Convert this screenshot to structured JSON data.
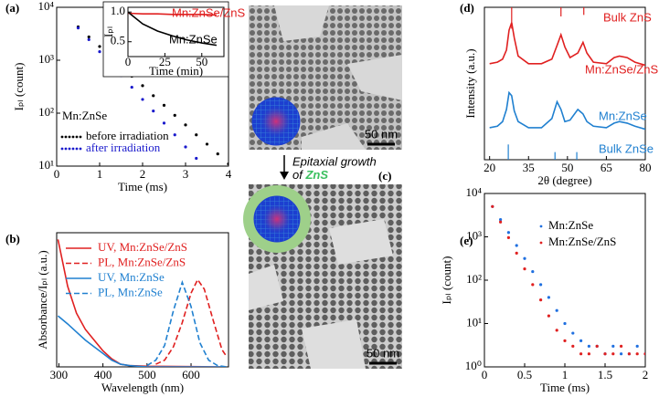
{
  "chart_data": [
    {
      "panel": "(a)",
      "type": "scatter",
      "xlabel": "Time (ms)",
      "ylabel": "Iₚₗ (count)",
      "xlim": [
        0,
        4
      ],
      "xticks": [
        0,
        1,
        2,
        3,
        4
      ],
      "ylog": true,
      "ylim": [
        10,
        10000
      ],
      "yticks": [
        {
          "value": 10,
          "label": "10¹"
        },
        {
          "value": 100,
          "label": "10²"
        },
        {
          "value": 1000,
          "label": "10³"
        },
        {
          "value": 10000,
          "label": "10⁴"
        }
      ],
      "annotation": "Mn:ZnSe",
      "legend": "lower left",
      "legend_text_colored": true,
      "series": [
        {
          "name": "before irradiation",
          "color": "#000000",
          "x": [
            0.5,
            0.75,
            1.0,
            1.25,
            1.5,
            1.75,
            2.0,
            2.25,
            2.5,
            2.75,
            3.0,
            3.25,
            3.5,
            3.75,
            4.0
          ],
          "values": [
            4260,
            2760,
            1820,
            1180,
            776,
            500,
            331,
            214,
            141,
            91,
            60,
            39,
            26,
            17,
            11
          ]
        },
        {
          "name": "after irradiation",
          "color": "#1a1acc",
          "x": [
            0.5,
            0.75,
            1.0,
            1.25,
            1.5,
            1.75,
            2.0,
            2.25,
            2.5,
            2.75,
            3.0,
            3.25
          ],
          "values": [
            4070,
            2450,
            1450,
            870,
            513,
            309,
            182,
            110,
            65,
            39,
            23,
            14
          ]
        }
      ]
    },
    {
      "type": "line",
      "inset": true,
      "xlabel": "Time (min)",
      "ylabel": "Iₚₗ",
      "xlim": [
        0,
        65
      ],
      "xticks": [
        0,
        25,
        50
      ],
      "ylim": [
        0.25,
        1.08
      ],
      "yticks": [
        0.5,
        {
          "value": 1,
          "label": "1.0"
        }
      ],
      "legend": "on curves",
      "series": [
        {
          "name": "Mn:ZnSe/ZnS",
          "color": "#e02020",
          "x": [
            0,
            10,
            20,
            30,
            40,
            50,
            60
          ],
          "values": [
            0.98,
            0.97,
            0.97,
            0.96,
            0.96,
            0.96,
            0.95
          ]
        },
        {
          "name": "Mn:ZnSe",
          "color": "#000000",
          "x": [
            0,
            10,
            20,
            30,
            40,
            50,
            60
          ],
          "values": [
            1.0,
            0.8,
            0.68,
            0.6,
            0.53,
            0.48,
            0.44
          ]
        }
      ]
    },
    {
      "panel": "(b)",
      "type": "line",
      "xlabel": "Wavelength (nm)",
      "ylabel": "Absorbance/Iₚₗ (a.u.)",
      "xlim": [
        295,
        685
      ],
      "xticks": [
        300,
        400,
        500,
        600
      ],
      "ylim": [
        0,
        1
      ],
      "legend": "upper right",
      "legend_text_colored": true,
      "series": [
        {
          "name": "UV, Mn:ZnSe/ZnS",
          "color": "#e02020",
          "dash": false,
          "x": [
            298,
            320,
            340,
            360,
            380,
            400,
            420,
            440,
            460,
            500,
            600,
            680
          ],
          "values": [
            0.95,
            0.6,
            0.4,
            0.28,
            0.2,
            0.12,
            0.06,
            0.02,
            0.01,
            0.005,
            0.002,
            0
          ]
        },
        {
          "name": "PL, Mn:ZnSe/ZnS",
          "color": "#e02020",
          "dash": true,
          "x": [
            520,
            540,
            560,
            580,
            600,
            615,
            630,
            650,
            670,
            680
          ],
          "values": [
            0.02,
            0.05,
            0.15,
            0.33,
            0.55,
            0.65,
            0.58,
            0.35,
            0.13,
            0.08
          ]
        },
        {
          "name": "UV, Mn:ZnSe",
          "color": "#2080d0",
          "dash": false,
          "x": [
            298,
            320,
            340,
            360,
            380,
            400,
            420,
            440,
            460,
            500,
            680
          ],
          "values": [
            0.38,
            0.32,
            0.26,
            0.2,
            0.15,
            0.1,
            0.05,
            0.02,
            0.01,
            0,
            0
          ]
        },
        {
          "name": "PL, Mn:ZnSe",
          "color": "#2080d0",
          "dash": true,
          "x": [
            500,
            520,
            540,
            560,
            580,
            600,
            620,
            640,
            660,
            680
          ],
          "values": [
            0.01,
            0.05,
            0.16,
            0.42,
            0.63,
            0.45,
            0.18,
            0.05,
            0.01,
            0
          ]
        }
      ]
    },
    {
      "panel": "(d)",
      "type": "line",
      "xlabel": "2θ (degree)",
      "ylabel": "Intensity (a.u.)",
      "xlim": [
        18,
        80
      ],
      "xticks": [
        20,
        35,
        50,
        65,
        80
      ],
      "ylim": [
        0,
        1
      ],
      "legend": "on curves",
      "series": [
        {
          "name": "Bulk ZnS",
          "color": "#e02020",
          "kind": "sticks",
          "baseline": "top",
          "x": [
            28.5,
            47.5,
            56.3
          ],
          "values": [
            0.86,
            0.94,
            0.95
          ]
        },
        {
          "name": "Mn:ZnSe/ZnS",
          "color": "#e02020",
          "x": [
            20,
            23,
            25,
            26.5,
            27.5,
            28.5,
            29.5,
            31,
            35,
            40,
            44,
            46,
            47.5,
            49,
            51,
            54,
            56,
            57.5,
            60,
            65,
            68,
            70,
            73,
            76,
            80
          ],
          "values": [
            0.63,
            0.64,
            0.66,
            0.72,
            0.85,
            0.9,
            0.8,
            0.68,
            0.63,
            0.63,
            0.66,
            0.75,
            0.82,
            0.74,
            0.67,
            0.7,
            0.77,
            0.7,
            0.64,
            0.63,
            0.67,
            0.68,
            0.67,
            0.64,
            0.62
          ]
        },
        {
          "name": "Mn:ZnSe",
          "color": "#2080d0",
          "x": [
            20,
            23,
            25,
            26.5,
            27.5,
            28.5,
            29.5,
            31,
            35,
            40,
            44,
            46,
            47.5,
            49,
            51,
            54,
            56,
            57.5,
            60,
            65,
            68,
            70,
            73,
            76,
            80
          ],
          "values": [
            0.21,
            0.22,
            0.25,
            0.33,
            0.44,
            0.42,
            0.32,
            0.25,
            0.21,
            0.21,
            0.27,
            0.38,
            0.33,
            0.25,
            0.26,
            0.33,
            0.3,
            0.25,
            0.22,
            0.21,
            0.24,
            0.25,
            0.24,
            0.22,
            0.2
          ]
        },
        {
          "name": "Bulk ZnSe",
          "color": "#2080d0",
          "kind": "sticks",
          "baseline": "bottom",
          "x": [
            27.2,
            45.2,
            53.6
          ],
          "values": [
            0.1,
            0.05,
            0.05
          ]
        }
      ]
    },
    {
      "panel": "(e)",
      "type": "scatter",
      "xlabel": "Time (ms)",
      "ylabel": "Iₚₗ (count)",
      "xlim": [
        0,
        2
      ],
      "xticks": [
        0,
        0.5,
        1,
        1.5,
        2
      ],
      "ylog": true,
      "ylim": [
        1,
        10000
      ],
      "yticks": [
        {
          "value": 1,
          "label": "10⁰"
        },
        {
          "value": 10,
          "label": "10¹"
        },
        {
          "value": 100,
          "label": "10²"
        },
        {
          "value": 1000,
          "label": "10³"
        },
        {
          "value": 10000,
          "label": "10⁴"
        }
      ],
      "legend": "upper right",
      "legend_text_colored": false,
      "series": [
        {
          "name": "Mn:ZnSe",
          "color": "#2070e0",
          "x": [
            0.1,
            0.2,
            0.3,
            0.4,
            0.5,
            0.6,
            0.7,
            0.8,
            0.9,
            1.0,
            1.1,
            1.2,
            1.3,
            1.4,
            1.5,
            1.6,
            1.7,
            1.8,
            1.9,
            2.0
          ],
          "values": [
            5000,
            2500,
            1260,
            630,
            316,
            158,
            79,
            40,
            20,
            10,
            6,
            4,
            3,
            3,
            2,
            3,
            2,
            2,
            3,
            2
          ]
        },
        {
          "name": "Mn:ZnSe/ZnS",
          "color": "#e02020",
          "x": [
            0.1,
            0.2,
            0.3,
            0.4,
            0.5,
            0.6,
            0.7,
            0.8,
            0.9,
            1.0,
            1.1,
            1.2,
            1.3,
            1.4,
            1.5,
            1.6,
            1.7,
            1.8,
            1.9,
            2.0
          ],
          "values": [
            5000,
            2200,
            960,
            420,
            182,
            79,
            35,
            15,
            7,
            4,
            3,
            2,
            2,
            3,
            2,
            2,
            3,
            2,
            2,
            2
          ]
        }
      ]
    }
  ],
  "figure": {
    "panel_c": "(c)",
    "scale_bar_top": "50 nm",
    "scale_bar_bottom": "50 nm",
    "arrow_text": "Epitaxial growth",
    "arrow_text_of": "of",
    "shell": "ZnS"
  }
}
